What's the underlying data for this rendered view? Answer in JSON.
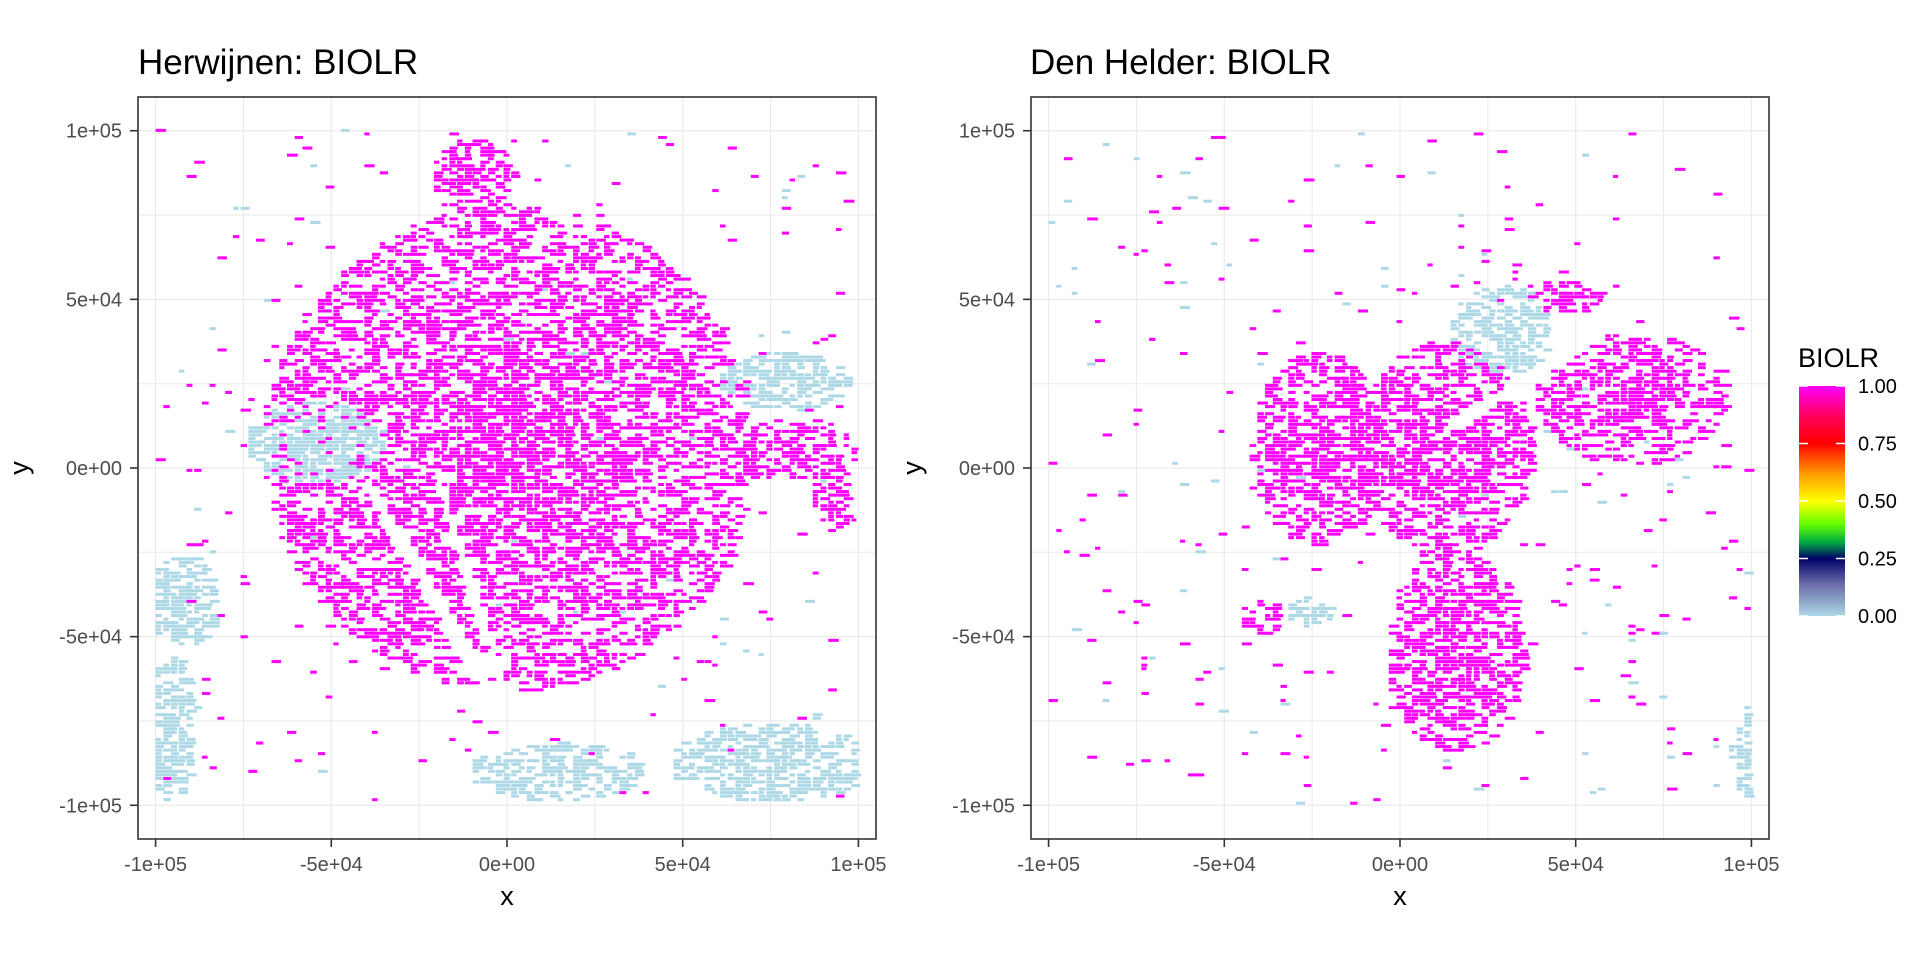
{
  "chart_data": [
    {
      "type": "heatmap",
      "title": "Herwijnen: BIOLR",
      "xlabel": "x",
      "ylabel": "y",
      "xlim": [
        -105000,
        105000
      ],
      "ylim": [
        -110000,
        110000
      ],
      "x_ticks": [
        -100000,
        -50000,
        0,
        50000,
        100000
      ],
      "y_ticks": [
        -100000,
        -50000,
        0,
        50000,
        100000
      ],
      "x_tick_labels": [
        "-1e+05",
        "-5e+04",
        "0e+00",
        "5e+04",
        "1e+05"
      ],
      "y_tick_labels": [
        "-1e+05",
        "-5e+04",
        "0e+00",
        "5e+04",
        "1e+05"
      ],
      "grid": true,
      "value_regions": [
        {
          "value": 1.0,
          "center": [
            0,
            5000
          ],
          "radius": [
            70000,
            72000
          ]
        },
        {
          "value": 1.0,
          "center": [
            -10000,
            85000
          ],
          "radius": [
            12000,
            12000
          ]
        },
        {
          "value": 1.0,
          "center": [
            80000,
            5000
          ],
          "radius": [
            22000,
            9000
          ]
        },
        {
          "value": 1.0,
          "center": [
            92000,
            -10000
          ],
          "radius": [
            6000,
            10000
          ]
        },
        {
          "value": 0.0,
          "center": [
            -55000,
            7000
          ],
          "radius": [
            20000,
            12000
          ]
        },
        {
          "value": 0.0,
          "center": [
            78000,
            25000
          ],
          "radius": [
            18000,
            9000
          ]
        },
        {
          "value": 0.0,
          "center": [
            -93000,
            -40000
          ],
          "radius": [
            10000,
            14000
          ]
        },
        {
          "value": 0.0,
          "center": [
            -96000,
            -78000
          ],
          "radius": [
            7000,
            22000
          ]
        },
        {
          "value": 0.0,
          "center": [
            13000,
            -91000
          ],
          "radius": [
            25000,
            9000
          ]
        },
        {
          "value": 0.0,
          "center": [
            75000,
            -88000
          ],
          "radius": [
            30000,
            12000
          ]
        }
      ],
      "gaps": [
        {
          "value": 0.0,
          "center": [
            -21000,
            -40000
          ],
          "radius": [
            2200,
            45000
          ],
          "angle_deg": 30
        },
        {
          "value": 0.0,
          "center": [
            -10000,
            -40000
          ],
          "radius": [
            1800,
            45000
          ],
          "angle_deg": 17
        }
      ]
    },
    {
      "type": "heatmap",
      "title": "Den Helder: BIOLR",
      "xlabel": "x",
      "ylabel": "y",
      "xlim": [
        -105000,
        105000
      ],
      "ylim": [
        -110000,
        110000
      ],
      "x_ticks": [
        -100000,
        -50000,
        0,
        50000,
        100000
      ],
      "y_ticks": [
        -100000,
        -50000,
        0,
        50000,
        100000
      ],
      "x_tick_labels": [
        "-1e+05",
        "-5e+04",
        "0e+00",
        "5e+04",
        "1e+05"
      ],
      "y_tick_labels": [
        "-1e+05",
        "-5e+04",
        "0e+00",
        "5e+04",
        "1e+05"
      ],
      "grid": true,
      "value_regions": [
        {
          "value": 1.0,
          "center": [
            -24000,
            5000
          ],
          "radius": [
            19000,
            29000
          ]
        },
        {
          "value": 1.0,
          "center": [
            12000,
            5000
          ],
          "radius": [
            25000,
            32000
          ]
        },
        {
          "value": 1.0,
          "center": [
            15000,
            -55000
          ],
          "radius": [
            20000,
            30000
          ]
        },
        {
          "value": 1.0,
          "center": [
            65000,
            20000
          ],
          "radius": [
            27000,
            20000
          ]
        },
        {
          "value": 1.0,
          "center": [
            45000,
            50000
          ],
          "radius": [
            12000,
            5000
          ]
        },
        {
          "value": 1.0,
          "center": [
            -40000,
            -45000
          ],
          "radius": [
            6000,
            5000
          ]
        },
        {
          "value": 0.0,
          "center": [
            28000,
            40000
          ],
          "radius": [
            14000,
            14000
          ]
        },
        {
          "value": 0.0,
          "center": [
            97000,
            -85000
          ],
          "radius": [
            3500,
            14000
          ]
        },
        {
          "value": 0.0,
          "center": [
            -26000,
            -43000
          ],
          "radius": [
            7000,
            5000
          ]
        }
      ],
      "gaps": [
        {
          "value": 0.0,
          "center": [
            45000,
            32000
          ],
          "radius": [
            45000,
            1800
          ],
          "angle_deg": 33
        }
      ]
    }
  ],
  "legend": {
    "title": "BIOLR",
    "placement": "right",
    "labels": [
      "1.00",
      "0.75",
      "0.50",
      "0.25",
      "0.00"
    ],
    "values": [
      1.0,
      0.75,
      0.5,
      0.25,
      0.0
    ],
    "colors": [
      "#ff00ff",
      "#ff0000",
      "#ff9900",
      "#ffff00",
      "#88ff00",
      "#00aa44",
      "#000066",
      "#add8e6"
    ]
  },
  "colors": {
    "high": "#ff00ff",
    "low": "#add8e6",
    "grid": "#ebebeb",
    "frame": "#333333"
  }
}
